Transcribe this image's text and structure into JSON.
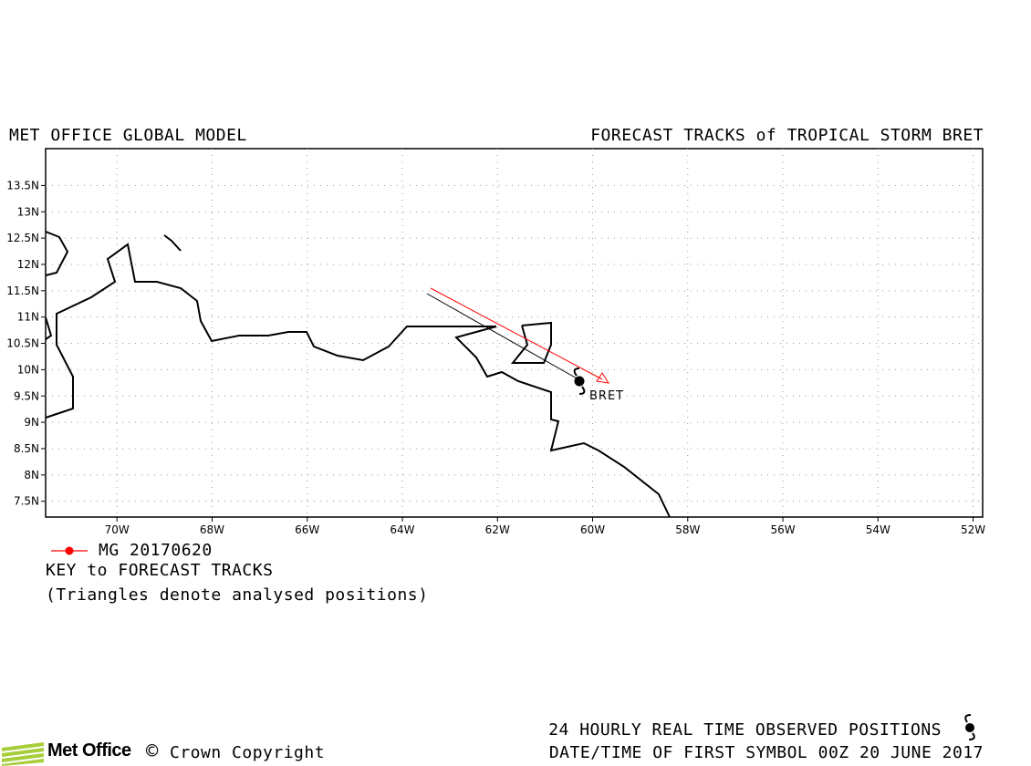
{
  "header": {
    "left_title": "MET OFFICE GLOBAL MODEL",
    "right_title": "FORECAST TRACKS of TROPICAL STORM BRET"
  },
  "map": {
    "lon_range": [
      -71.5,
      -51.8
    ],
    "lat_range": [
      7.2,
      14.2
    ],
    "lat_ticks": [
      "13.5N",
      "13N",
      "12.5N",
      "12N",
      "11.5N",
      "11N",
      "10.5N",
      "10N",
      "9.5N",
      "9N",
      "8.5N",
      "8N",
      "7.5N"
    ],
    "lon_ticks": [
      "70W",
      "68W",
      "66W",
      "64W",
      "62W",
      "60W",
      "58W",
      "56W",
      "54W",
      "52W"
    ],
    "grid": "dotted",
    "storm_label": "BRET",
    "track_color": "#ff0000"
  },
  "key": {
    "track_label": "MG 20170620",
    "title": "KEY to FORECAST TRACKS",
    "note": "(Triangles denote analysed positions)"
  },
  "footer": {
    "observed": "24 HOURLY REAL TIME OBSERVED POSITIONS",
    "datetime": "DATE/TIME OF FIRST SYMBOL 00Z 20 JUNE 2017",
    "copyright": "Crown Copyright",
    "logo": "Met Office"
  }
}
